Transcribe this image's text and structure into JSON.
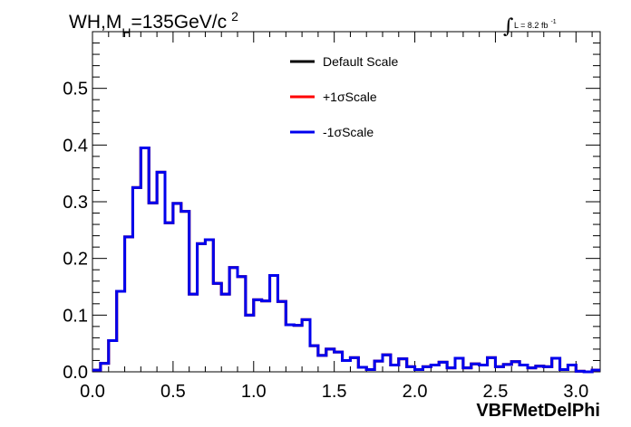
{
  "chart_data": {
    "type": "step-histogram",
    "title_parts": {
      "main": "WH,M",
      "subscript": "H",
      "mid": "=135GeV/c",
      "superscript": "2"
    },
    "luminosity": {
      "integral_symbol": "∫",
      "text": "L = 8.2 fb",
      "exponent": "-1"
    },
    "xlabel": "VBFMetDelPhi",
    "ylabel": "",
    "xlim": [
      0.0,
      3.15
    ],
    "ylim": [
      0.0,
      0.6
    ],
    "x_ticks": [
      "0.0",
      "0.5",
      "1.0",
      "1.5",
      "2.0",
      "2.5",
      "3.0"
    ],
    "x_tick_values": [
      0.0,
      0.5,
      1.0,
      1.5,
      2.0,
      2.5,
      3.0
    ],
    "y_ticks": [
      "0.0",
      "0.1",
      "0.2",
      "0.3",
      "0.4",
      "0.5"
    ],
    "y_tick_values": [
      0.0,
      0.1,
      0.2,
      0.3,
      0.4,
      0.5
    ],
    "grid": false,
    "legend_position": "top-center",
    "bins": 63,
    "bin_width": 0.05,
    "series": [
      {
        "name": "Default Scale",
        "color": "#000000",
        "values": [
          0.003,
          0.015,
          0.055,
          0.142,
          0.238,
          0.325,
          0.395,
          0.298,
          0.352,
          0.263,
          0.297,
          0.283,
          0.137,
          0.226,
          0.233,
          0.156,
          0.137,
          0.184,
          0.168,
          0.1,
          0.127,
          0.125,
          0.17,
          0.124,
          0.083,
          0.082,
          0.092,
          0.046,
          0.029,
          0.04,
          0.035,
          0.02,
          0.025,
          0.008,
          0.004,
          0.019,
          0.03,
          0.012,
          0.023,
          0.009,
          0.004,
          0.009,
          0.012,
          0.017,
          0.007,
          0.024,
          0.007,
          0.014,
          0.012,
          0.025,
          0.009,
          0.013,
          0.018,
          0.012,
          0.007,
          0.01,
          0.009,
          0.024,
          0.004,
          0.012,
          0.001,
          0.0,
          0.003
        ]
      },
      {
        "name": "+1σScale",
        "color": "#ff0000",
        "values": [
          0.003,
          0.015,
          0.055,
          0.142,
          0.238,
          0.325,
          0.395,
          0.298,
          0.352,
          0.263,
          0.297,
          0.283,
          0.137,
          0.226,
          0.233,
          0.156,
          0.137,
          0.184,
          0.168,
          0.1,
          0.127,
          0.125,
          0.17,
          0.124,
          0.083,
          0.082,
          0.092,
          0.046,
          0.029,
          0.04,
          0.035,
          0.02,
          0.025,
          0.008,
          0.004,
          0.019,
          0.03,
          0.012,
          0.023,
          0.009,
          0.004,
          0.009,
          0.012,
          0.017,
          0.007,
          0.024,
          0.007,
          0.014,
          0.012,
          0.025,
          0.009,
          0.013,
          0.018,
          0.012,
          0.007,
          0.01,
          0.009,
          0.024,
          0.004,
          0.012,
          0.001,
          0.0,
          0.003
        ]
      },
      {
        "name": "-1σScale",
        "color": "#0000ee",
        "values": [
          0.003,
          0.015,
          0.055,
          0.142,
          0.238,
          0.325,
          0.395,
          0.298,
          0.352,
          0.263,
          0.297,
          0.283,
          0.137,
          0.226,
          0.233,
          0.156,
          0.137,
          0.184,
          0.168,
          0.1,
          0.127,
          0.125,
          0.17,
          0.124,
          0.083,
          0.082,
          0.092,
          0.046,
          0.029,
          0.04,
          0.035,
          0.02,
          0.025,
          0.008,
          0.004,
          0.019,
          0.03,
          0.012,
          0.023,
          0.009,
          0.004,
          0.009,
          0.012,
          0.017,
          0.007,
          0.024,
          0.007,
          0.014,
          0.012,
          0.025,
          0.009,
          0.013,
          0.018,
          0.012,
          0.007,
          0.01,
          0.009,
          0.024,
          0.004,
          0.012,
          0.001,
          0.0,
          0.003
        ]
      }
    ]
  }
}
